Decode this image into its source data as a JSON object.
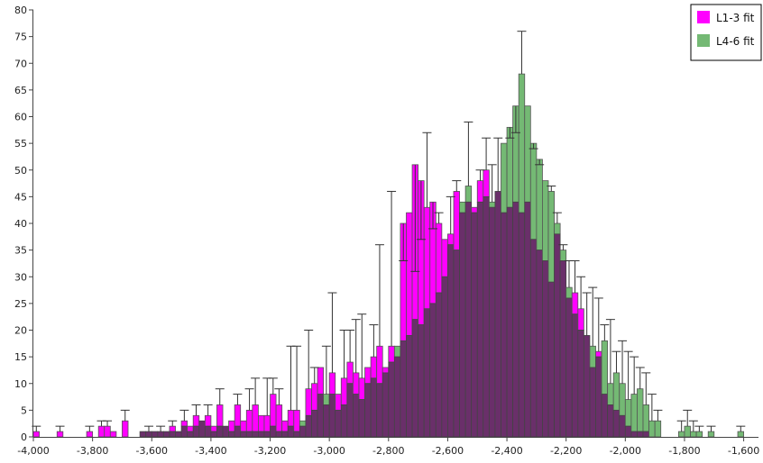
{
  "chart_data": {
    "type": "bar",
    "title": "",
    "xlabel": "",
    "ylabel": "",
    "xlim": [
      -4000,
      -1550
    ],
    "ylim": [
      0,
      80
    ],
    "bin_width": 20,
    "x_ticks": [
      "-4,000",
      "-3,800",
      "-3,600",
      "-3,400",
      "-3,200",
      "-3,000",
      "-2,800",
      "-2,600",
      "-2,400",
      "-2,200",
      "-2,000",
      "-1,800",
      "-1,600"
    ],
    "y_ticks": [
      "0",
      "5",
      "10",
      "15",
      "20",
      "25",
      "30",
      "35",
      "40",
      "45",
      "50",
      "55",
      "60",
      "65",
      "70",
      "75",
      "80"
    ],
    "legend_position": "top-right",
    "grid": false,
    "overlap_color": "#6a2f6a",
    "series": [
      {
        "name": "L1-3 fit",
        "color": "#ff00ff",
        "x": [
          -3990,
          -3910,
          -3810,
          -3770,
          -3750,
          -3730,
          -3690,
          -3630,
          -3610,
          -3590,
          -3570,
          -3550,
          -3530,
          -3510,
          -3490,
          -3470,
          -3450,
          -3430,
          -3410,
          -3390,
          -3370,
          -3350,
          -3330,
          -3310,
          -3290,
          -3270,
          -3250,
          -3230,
          -3210,
          -3190,
          -3170,
          -3150,
          -3130,
          -3110,
          -3090,
          -3070,
          -3050,
          -3030,
          -3010,
          -2990,
          -2970,
          -2950,
          -2930,
          -2910,
          -2890,
          -2870,
          -2850,
          -2830,
          -2810,
          -2790,
          -2770,
          -2750,
          -2730,
          -2710,
          -2690,
          -2670,
          -2650,
          -2630,
          -2610,
          -2590,
          -2570,
          -2550,
          -2530,
          -2510,
          -2490,
          -2470,
          -2450,
          -2430,
          -2410,
          -2390,
          -2370,
          -2350,
          -2330,
          -2310,
          -2290,
          -2270,
          -2250,
          -2230,
          -2210,
          -2190,
          -2170,
          -2150,
          -2130,
          -2110,
          -2090,
          -2070,
          -2050,
          -2030,
          -2010,
          -1990,
          -1970,
          -1950,
          -1930
        ],
        "y": [
          1,
          1,
          1,
          2,
          2,
          1,
          3,
          1,
          1,
          1,
          1,
          1,
          2,
          1,
          3,
          2,
          4,
          3,
          4,
          2,
          6,
          2,
          3,
          6,
          3,
          5,
          6,
          4,
          4,
          8,
          6,
          3,
          5,
          5,
          2,
          9,
          10,
          13,
          6,
          12,
          8,
          11,
          14,
          12,
          11,
          13,
          15,
          17,
          13,
          17,
          15,
          40,
          42,
          51,
          48,
          43,
          44,
          40,
          37,
          38,
          46,
          42,
          44,
          43,
          48,
          50,
          43,
          46,
          42,
          43,
          44,
          42,
          44,
          37,
          35,
          33,
          29,
          38,
          33,
          26,
          27,
          24,
          19,
          13,
          16,
          8,
          6,
          5,
          4,
          2,
          1,
          1,
          1
        ]
      },
      {
        "name": "L4-6 fit",
        "color": "#74b974",
        "x": [
          -3630,
          -3610,
          -3590,
          -3570,
          -3550,
          -3530,
          -3510,
          -3490,
          -3470,
          -3450,
          -3430,
          -3410,
          -3390,
          -3370,
          -3350,
          -3330,
          -3310,
          -3290,
          -3270,
          -3250,
          -3230,
          -3210,
          -3190,
          -3170,
          -3150,
          -3130,
          -3110,
          -3090,
          -3070,
          -3050,
          -3030,
          -3010,
          -2990,
          -2970,
          -2950,
          -2930,
          -2910,
          -2890,
          -2870,
          -2850,
          -2830,
          -2810,
          -2790,
          -2770,
          -2750,
          -2730,
          -2710,
          -2690,
          -2670,
          -2650,
          -2630,
          -2610,
          -2590,
          -2570,
          -2550,
          -2530,
          -2510,
          -2490,
          -2470,
          -2450,
          -2430,
          -2410,
          -2390,
          -2370,
          -2350,
          -2330,
          -2310,
          -2290,
          -2270,
          -2250,
          -2230,
          -2210,
          -2190,
          -2170,
          -2150,
          -2130,
          -2110,
          -2090,
          -2070,
          -2050,
          -2030,
          -2010,
          -1990,
          -1970,
          -1950,
          -1930,
          -1910,
          -1890,
          -1810,
          -1790,
          -1770,
          -1750,
          -1710,
          -1610
        ],
        "y": [
          1,
          1,
          1,
          1,
          1,
          1,
          1,
          2,
          1,
          2,
          3,
          2,
          1,
          2,
          2,
          1,
          2,
          1,
          1,
          1,
          1,
          1,
          2,
          1,
          1,
          2,
          1,
          3,
          4,
          5,
          8,
          8,
          8,
          5,
          6,
          10,
          8,
          7,
          10,
          11,
          10,
          12,
          14,
          17,
          18,
          19,
          22,
          21,
          24,
          25,
          27,
          30,
          36,
          35,
          44,
          47,
          42,
          44,
          45,
          44,
          46,
          55,
          58,
          62,
          68,
          62,
          55,
          52,
          48,
          46,
          40,
          35,
          28,
          23,
          20,
          19,
          17,
          15,
          18,
          10,
          12,
          10,
          7,
          8,
          9,
          6,
          3,
          3,
          1,
          2,
          1,
          1,
          1,
          1
        ]
      }
    ],
    "error_bars": [
      {
        "x": -3990,
        "top": 2
      },
      {
        "x": -3910,
        "top": 2
      },
      {
        "x": -3810,
        "top": 2
      },
      {
        "x": -3770,
        "top": 3
      },
      {
        "x": -3750,
        "top": 3
      },
      {
        "x": -3690,
        "top": 5
      },
      {
        "x": -3610,
        "top": 2
      },
      {
        "x": -3570,
        "top": 2
      },
      {
        "x": -3530,
        "top": 3
      },
      {
        "x": -3490,
        "top": 5
      },
      {
        "x": -3450,
        "top": 6
      },
      {
        "x": -3410,
        "top": 6
      },
      {
        "x": -3370,
        "top": 9
      },
      {
        "x": -3310,
        "top": 8
      },
      {
        "x": -3270,
        "top": 9
      },
      {
        "x": -3250,
        "top": 11
      },
      {
        "x": -3210,
        "top": 11
      },
      {
        "x": -3190,
        "top": 11
      },
      {
        "x": -3170,
        "top": 9
      },
      {
        "x": -3130,
        "top": 17
      },
      {
        "x": -3110,
        "top": 17
      },
      {
        "x": -3070,
        "top": 20
      },
      {
        "x": -3050,
        "top": 13
      },
      {
        "x": -3010,
        "top": 17
      },
      {
        "x": -2990,
        "top": 27
      },
      {
        "x": -2950,
        "top": 20
      },
      {
        "x": -2930,
        "top": 20
      },
      {
        "x": -2910,
        "top": 22
      },
      {
        "x": -2890,
        "top": 23
      },
      {
        "x": -2850,
        "top": 21
      },
      {
        "x": -2830,
        "top": 36
      },
      {
        "x": -2790,
        "top": 46
      },
      {
        "x": -2750,
        "top": 33
      },
      {
        "x": -2710,
        "top": 31
      },
      {
        "x": -2690,
        "top": 37
      },
      {
        "x": -2670,
        "top": 57
      },
      {
        "x": -2650,
        "top": 39
      },
      {
        "x": -2630,
        "top": 42
      },
      {
        "x": -2590,
        "top": 45
      },
      {
        "x": -2570,
        "top": 48
      },
      {
        "x": -2530,
        "top": 59
      },
      {
        "x": -2490,
        "top": 50
      },
      {
        "x": -2470,
        "top": 56
      },
      {
        "x": -2450,
        "top": 51
      },
      {
        "x": -2430,
        "top": 56
      },
      {
        "x": -2390,
        "top": 56
      },
      {
        "x": -2370,
        "top": 57
      },
      {
        "x": -2350,
        "top": 76
      },
      {
        "x": -2310,
        "top": 54
      },
      {
        "x": -2290,
        "top": 51
      },
      {
        "x": -2250,
        "top": 47
      },
      {
        "x": -2230,
        "top": 42
      },
      {
        "x": -2210,
        "top": 36
      },
      {
        "x": -2190,
        "top": 33
      },
      {
        "x": -2170,
        "top": 33
      },
      {
        "x": -2150,
        "top": 30
      },
      {
        "x": -2130,
        "top": 27
      },
      {
        "x": -2110,
        "top": 28
      },
      {
        "x": -2090,
        "top": 26
      },
      {
        "x": -2070,
        "top": 21
      },
      {
        "x": -2050,
        "top": 22
      },
      {
        "x": -2030,
        "top": 16
      },
      {
        "x": -2010,
        "top": 18
      },
      {
        "x": -1990,
        "top": 16
      },
      {
        "x": -1970,
        "top": 15
      },
      {
        "x": -1950,
        "top": 13
      },
      {
        "x": -1930,
        "top": 12
      },
      {
        "x": -1910,
        "top": 8
      },
      {
        "x": -1890,
        "top": 5
      },
      {
        "x": -1810,
        "top": 3
      },
      {
        "x": -1790,
        "top": 5
      },
      {
        "x": -1770,
        "top": 3
      },
      {
        "x": -1750,
        "top": 2
      },
      {
        "x": -1710,
        "top": 2
      },
      {
        "x": -1610,
        "top": 2
      }
    ]
  }
}
